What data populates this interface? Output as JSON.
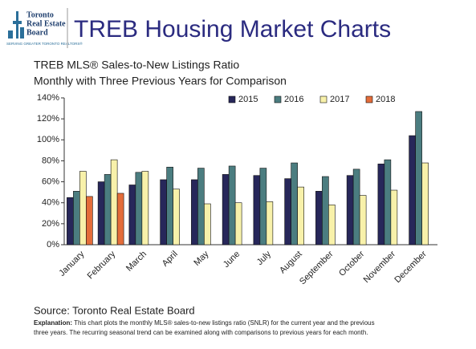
{
  "header": {
    "org_line1": "Toronto",
    "org_line2": "Real Estate",
    "org_line3": "Board",
    "tagline": "SERVING GREATER TORONTO REALTORS®",
    "title": "TREB Housing Market Charts"
  },
  "chart_data": {
    "type": "bar",
    "title": "TREB MLS® Sales-to-New Listings Ratio",
    "subtitle": "Monthly with Three Previous Years for Comparison",
    "categories": [
      "January",
      "February",
      "March",
      "April",
      "May",
      "June",
      "July",
      "August",
      "September",
      "October",
      "November",
      "December"
    ],
    "series": [
      {
        "name": "2015",
        "color": "#27275a",
        "values": [
          45,
          60,
          57,
          62,
          62,
          67,
          66,
          63,
          51,
          66,
          77,
          104
        ]
      },
      {
        "name": "2016",
        "color": "#4b7d80",
        "values": [
          51,
          67,
          69,
          74,
          73,
          75,
          73,
          78,
          65,
          72,
          81,
          127
        ]
      },
      {
        "name": "2017",
        "color": "#f8f1aa",
        "values": [
          70,
          81,
          70,
          53,
          39,
          40,
          41,
          55,
          38,
          47,
          52,
          78
        ]
      },
      {
        "name": "2018",
        "color": "#e46d3a",
        "values": [
          46,
          49,
          null,
          null,
          null,
          null,
          null,
          null,
          null,
          null,
          null,
          null
        ]
      }
    ],
    "ylim": [
      0,
      140
    ],
    "yticks": [
      {
        "value": 0,
        "label": "0%"
      },
      {
        "value": 20,
        "label": "20%"
      },
      {
        "value": 40,
        "label": "40%"
      },
      {
        "value": 60,
        "label": "60%"
      },
      {
        "value": 80,
        "label": "80%"
      },
      {
        "value": 100,
        "label": "100%"
      },
      {
        "value": 120,
        "label": "120%"
      },
      {
        "value": 140,
        "label": "140%"
      }
    ],
    "grid": false,
    "legend": "top-right"
  },
  "footer": {
    "source": "Source: Toronto Real Estate Board",
    "explanation_label": "Explanation:",
    "explanation_lines": [
      "This chart plots the monthly MLS® sales-to-new listings ratio (SNLR) for the current year and the previous",
      "three years. The recurring seasonal trend can be examined along with comparisons to previous years for each month."
    ]
  }
}
